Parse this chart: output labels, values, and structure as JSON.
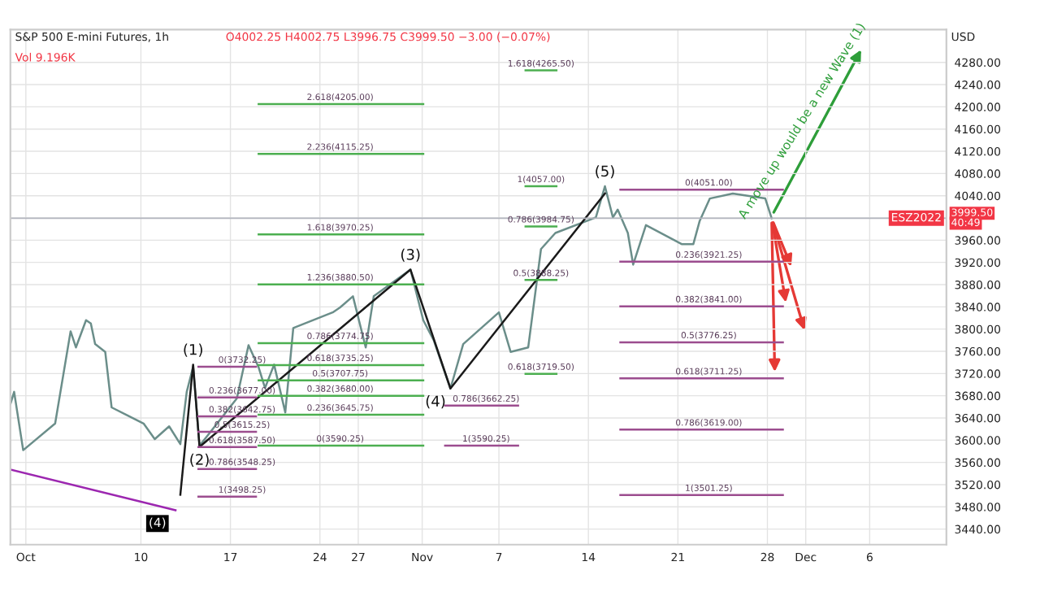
{
  "chart_data": {
    "type": "line",
    "title": "S&P 500 E-mini Futures, 1h",
    "subtitle": "O4002.25 H4002.75 L3996.75 C3999.50 −3.00 (−0.07%)",
    "ylabel": "USD",
    "xlim": [
      "2022-09-29T19:00",
      "2022-12-12"
    ],
    "ylim": [
      3412,
      4339
    ],
    "xticks": [
      {
        "value": "2022-10-01",
        "label": "Oct"
      },
      {
        "value": "2022-10-10",
        "label": "10"
      },
      {
        "value": "2022-10-17",
        "label": "17"
      },
      {
        "value": "2022-10-24",
        "label": "24"
      },
      {
        "value": "2022-10-27",
        "label": "27"
      },
      {
        "value": "2022-11-01",
        "label": "Nov"
      },
      {
        "value": "2022-11-07",
        "label": "7"
      },
      {
        "value": "2022-11-14",
        "label": "14"
      },
      {
        "value": "2022-11-21",
        "label": "21"
      },
      {
        "value": "2022-11-28",
        "label": "28"
      },
      {
        "value": "2022-12-01",
        "label": "Dec"
      },
      {
        "value": "2022-12-06",
        "label": "6"
      }
    ],
    "yticks": [
      {
        "value": 3440,
        "label": "3440.00"
      },
      {
        "value": 3480,
        "label": "3480.00"
      },
      {
        "value": 3520,
        "label": "3520.00"
      },
      {
        "value": 3560,
        "label": "3560.00"
      },
      {
        "value": 3600,
        "label": "3600.00"
      },
      {
        "value": 3640,
        "label": "3640.00"
      },
      {
        "value": 3680,
        "label": "3680.00"
      },
      {
        "value": 3720,
        "label": "3720.00"
      },
      {
        "value": 3760,
        "label": "3760.00"
      },
      {
        "value": 3800,
        "label": "3800.00"
      },
      {
        "value": 3840,
        "label": "3840.00"
      },
      {
        "value": 3880,
        "label": "3880.00"
      },
      {
        "value": 3920,
        "label": "3920.00"
      },
      {
        "value": 3960,
        "label": "3960.00"
      },
      {
        "value": 4000,
        "label": null
      },
      {
        "value": 4040,
        "label": "4040.00"
      },
      {
        "value": 4080,
        "label": "4080.00"
      },
      {
        "value": 4120,
        "label": "4120.00"
      },
      {
        "value": 4160,
        "label": "4160.00"
      },
      {
        "value": 4200,
        "label": "4200.00"
      },
      {
        "value": 4240,
        "label": "4240.00"
      },
      {
        "value": 4280,
        "label": "4280.00"
      }
    ],
    "grid": true,
    "series": [
      {
        "color": "#6b8e8a",
        "x": [
          "2022-09-29T19:00",
          "2022-09-30T02:00",
          "2022-09-30T19:00",
          "2022-10-03T07:00",
          "2022-10-04T12:00",
          "2022-10-04T22:00",
          "2022-10-05T17:00",
          "2022-10-06T02:00",
          "2022-10-06T10:00",
          "2022-10-07T05:00",
          "2022-10-07T17:00",
          "2022-10-10T05:00",
          "2022-10-11T02:00",
          "2022-10-12T05:00",
          "2022-10-13T02:00",
          "2022-10-13T14:00",
          "2022-10-14T02:00",
          "2022-10-14T14:00",
          "2022-10-17T12:00",
          "2022-10-18T10:00",
          "2022-10-19T05:00",
          "2022-10-19T17:00",
          "2022-10-20T10:00",
          "2022-10-21T07:00",
          "2022-10-21T22:00",
          "2022-10-25T00:00",
          "2022-10-25T14:00",
          "2022-10-26T14:00",
          "2022-10-27T14:00",
          "2022-10-28T05:00",
          "2022-10-31T02:00",
          "2022-11-01T02:00",
          "2022-11-01T22:00",
          "2022-11-03T05:00",
          "2022-11-04T05:00",
          "2022-11-07T00:00",
          "2022-11-07T22:00",
          "2022-11-09T07:00",
          "2022-11-10T07:00",
          "2022-11-11T10:00",
          "2022-11-14T14:00",
          "2022-11-15T07:00",
          "2022-11-15T22:00",
          "2022-11-16T07:00",
          "2022-11-17T02:00",
          "2022-11-17T12:00",
          "2022-11-18T12:00",
          "2022-11-21T07:00",
          "2022-11-22T05:00",
          "2022-11-22T17:00",
          "2022-11-23T12:00",
          "2022-11-25T07:00",
          "2022-11-27T20:00",
          "2022-11-28T08:00"
        ],
        "values": [
          3665,
          3687,
          3582,
          3630,
          3796,
          3767,
          3816,
          3810,
          3773,
          3759,
          3659,
          3630,
          3602,
          3625,
          3593,
          3687,
          3732,
          3590,
          3675,
          3771,
          3731,
          3694,
          3736,
          3650,
          3802,
          3830,
          3839,
          3859,
          3767,
          3859,
          3907,
          3816,
          3779,
          3693,
          3773,
          3830,
          3759,
          3767,
          3944,
          3973,
          4001,
          4057,
          4001,
          4015,
          3973,
          3916,
          3987,
          3953,
          3953,
          3995,
          4035,
          4044,
          4035,
          3999.5
        ]
      },
      {
        "color": "#1a1a1a",
        "x": [
          "2022-10-13T02:00",
          "2022-10-14T02:00",
          "2022-10-14T14:00",
          "2022-10-31T02:00",
          "2022-11-03T05:00",
          "2022-11-15T07:00"
        ],
        "values": [
          3502,
          3736,
          3588,
          3907,
          3693,
          4044
        ]
      },
      {
        "color": "#9c27b0",
        "x": [
          "2022-09-29T19:00",
          "2022-10-12T17:00"
        ],
        "values": [
          3547,
          3474
        ]
      },
      {
        "color": "#4caf50",
        "x": [
          "2022-10-19T05:00",
          "2022-11-01T02:00"
        ],
        "values": [
          4205,
          4205
        ]
      },
      {
        "color": "#4caf50",
        "x": [
          "2022-10-19T05:00",
          "2022-11-01T02:00"
        ],
        "values": [
          4115.25,
          4115.25
        ]
      },
      {
        "color": "#4caf50",
        "x": [
          "2022-10-19T05:00",
          "2022-11-01T02:00"
        ],
        "values": [
          3970.25,
          3970.25
        ]
      },
      {
        "color": "#4caf50",
        "x": [
          "2022-10-19T05:00",
          "2022-11-01T02:00"
        ],
        "values": [
          3880.5,
          3880.5
        ]
      },
      {
        "color": "#4caf50",
        "x": [
          "2022-10-19T05:00",
          "2022-11-01T02:00"
        ],
        "values": [
          3774.75,
          3774.75
        ]
      },
      {
        "color": "#4caf50",
        "x": [
          "2022-10-19T05:00",
          "2022-11-01T02:00"
        ],
        "values": [
          3735.25,
          3735.25
        ]
      },
      {
        "color": "#4caf50",
        "x": [
          "2022-10-19T05:00",
          "2022-11-01T02:00"
        ],
        "values": [
          3707.75,
          3707.75
        ]
      },
      {
        "color": "#4caf50",
        "x": [
          "2022-10-19T05:00",
          "2022-11-01T02:00"
        ],
        "values": [
          3680,
          3680
        ]
      },
      {
        "color": "#4caf50",
        "x": [
          "2022-10-19T05:00",
          "2022-11-01T02:00"
        ],
        "values": [
          3645.75,
          3645.75
        ]
      },
      {
        "color": "#4caf50",
        "x": [
          "2022-10-19T05:00",
          "2022-11-01T02:00"
        ],
        "values": [
          3590.25,
          3590.25
        ]
      },
      {
        "color": "#4caf50",
        "x": [
          "2022-11-09T02:00",
          "2022-11-11T12:00"
        ],
        "values": [
          4265.5,
          4265.5
        ]
      },
      {
        "color": "#4caf50",
        "x": [
          "2022-11-09T02:00",
          "2022-11-11T12:00"
        ],
        "values": [
          4057,
          4057
        ]
      },
      {
        "color": "#4caf50",
        "x": [
          "2022-11-09T02:00",
          "2022-11-11T12:00"
        ],
        "values": [
          3984.75,
          3984.75
        ]
      },
      {
        "color": "#4caf50",
        "x": [
          "2022-11-09T02:00",
          "2022-11-11T12:00"
        ],
        "values": [
          3888.25,
          3888.25
        ]
      },
      {
        "color": "#4caf50",
        "x": [
          "2022-11-09T02:00",
          "2022-11-11T12:00"
        ],
        "values": [
          3719.5,
          3719.5
        ]
      },
      {
        "color": "#9c4d8f",
        "x": [
          "2022-11-16T12:00",
          "2022-11-29T05:00"
        ],
        "values": [
          4051,
          4051
        ]
      },
      {
        "color": "#9c4d8f",
        "x": [
          "2022-11-16T12:00",
          "2022-11-29T05:00"
        ],
        "values": [
          3921.25,
          3921.25
        ]
      },
      {
        "color": "#9c4d8f",
        "x": [
          "2022-11-16T12:00",
          "2022-11-29T05:00"
        ],
        "values": [
          3841,
          3841
        ]
      },
      {
        "color": "#9c4d8f",
        "x": [
          "2022-11-16T12:00",
          "2022-11-29T05:00"
        ],
        "values": [
          3776.25,
          3776.25
        ]
      },
      {
        "color": "#9c4d8f",
        "x": [
          "2022-11-16T12:00",
          "2022-11-29T05:00"
        ],
        "values": [
          3711.25,
          3711.25
        ]
      },
      {
        "color": "#9c4d8f",
        "x": [
          "2022-11-16T12:00",
          "2022-11-29T05:00"
        ],
        "values": [
          3619,
          3619
        ]
      },
      {
        "color": "#9c4d8f",
        "x": [
          "2022-11-16T12:00",
          "2022-11-29T05:00"
        ],
        "values": [
          3501.25,
          3501.25
        ]
      },
      {
        "color": "#9c4d8f",
        "x": [
          "2022-10-14T12:00",
          "2022-10-19T00:00"
        ],
        "values": [
          3732.25,
          3732.25
        ]
      },
      {
        "color": "#9c4d8f",
        "x": [
          "2022-10-14T12:00",
          "2022-10-19T00:00"
        ],
        "values": [
          3677,
          3677
        ]
      },
      {
        "color": "#9c4d8f",
        "x": [
          "2022-10-14T12:00",
          "2022-10-19T00:00"
        ],
        "values": [
          3642.75,
          3642.75
        ]
      },
      {
        "color": "#9c4d8f",
        "x": [
          "2022-10-14T12:00",
          "2022-10-19T00:00"
        ],
        "values": [
          3615.25,
          3615.25
        ]
      },
      {
        "color": "#9c4d8f",
        "x": [
          "2022-10-14T12:00",
          "2022-10-19T00:00"
        ],
        "values": [
          3587.5,
          3587.5
        ]
      },
      {
        "color": "#9c4d8f",
        "x": [
          "2022-10-14T12:00",
          "2022-10-19T00:00"
        ],
        "values": [
          3548.25,
          3548.25
        ]
      },
      {
        "color": "#9c4d8f",
        "x": [
          "2022-10-14T12:00",
          "2022-10-19T00:00"
        ],
        "values": [
          3498.25,
          3498.25
        ]
      },
      {
        "color": "#9c4d8f",
        "x": [
          "2022-11-02T19:00",
          "2022-11-08T12:00"
        ],
        "values": [
          3662.25,
          3662.25
        ]
      },
      {
        "color": "#9c4d8f",
        "x": [
          "2022-11-02T19:00",
          "2022-11-08T12:00"
        ],
        "values": [
          3590.25,
          3590.25
        ]
      }
    ],
    "ref_lines": [
      {
        "axis": "y",
        "value": 3999.5,
        "label": "ESZ2022",
        "color": "#b2b5be"
      }
    ],
    "annotations": [
      "Vol 9.196K",
      {
        "text": "2.618(4205.00)",
        "x": "2022-10-25T14:00",
        "y": 4205
      },
      {
        "text": "2.236(4115.25)",
        "x": "2022-10-25T14:00",
        "y": 4115.25
      },
      {
        "text": "1.618(3970.25)",
        "x": "2022-10-25T14:00",
        "y": 3970.25
      },
      {
        "text": "1.236(3880.50)",
        "x": "2022-10-25T14:00",
        "y": 3880.5
      },
      {
        "text": "0.786(3774.75)",
        "x": "2022-10-25T14:00",
        "y": 3774.75
      },
      {
        "text": "0.618(3735.25)",
        "x": "2022-10-25T14:00",
        "y": 3735.25
      },
      {
        "text": "0.5(3707.75)",
        "x": "2022-10-25T14:00",
        "y": 3707.75
      },
      {
        "text": "0.382(3680.00)",
        "x": "2022-10-25T14:00",
        "y": 3680
      },
      {
        "text": "0.236(3645.75)",
        "x": "2022-10-25T14:00",
        "y": 3645.75
      },
      {
        "text": "0(3590.25)",
        "x": "2022-10-25T14:00",
        "y": 3590.25
      },
      {
        "text": "1.618(4265.50)",
        "x": "2022-11-10T07:00",
        "y": 4265.5
      },
      {
        "text": "1(4057.00)",
        "x": "2022-11-10T07:00",
        "y": 4057
      },
      {
        "text": "0.786(3984.75)",
        "x": "2022-11-10T07:00",
        "y": 3984.75
      },
      {
        "text": "0.5(3888.25)",
        "x": "2022-11-10T07:00",
        "y": 3888.25
      },
      {
        "text": "0.618(3719.50)",
        "x": "2022-11-10T07:00",
        "y": 3719.5
      },
      {
        "text": "0(4051.00)",
        "x": "2022-11-23T10:00",
        "y": 4051
      },
      {
        "text": "0.236(3921.25)",
        "x": "2022-11-23T10:00",
        "y": 3921.25
      },
      {
        "text": "0.382(3841.00)",
        "x": "2022-11-23T10:00",
        "y": 3841
      },
      {
        "text": "0.5(3776.25)",
        "x": "2022-11-23T10:00",
        "y": 3776.25
      },
      {
        "text": "0.618(3711.25)",
        "x": "2022-11-23T10:00",
        "y": 3711.25
      },
      {
        "text": "0.786(3619.00)",
        "x": "2022-11-23T10:00",
        "y": 3619
      },
      {
        "text": "1(3501.25)",
        "x": "2022-11-23T10:00",
        "y": 3501.25
      },
      {
        "text": "0(3732.25)",
        "x": "2022-10-17T22:00",
        "y": 3732.25
      },
      {
        "text": "0.236(3677.00)",
        "x": "2022-10-17T22:00",
        "y": 3677
      },
      {
        "text": "0.382(3642.75)",
        "x": "2022-10-17T22:00",
        "y": 3642.75
      },
      {
        "text": "0.5(3615.25)",
        "x": "2022-10-17T22:00",
        "y": 3615.25
      },
      {
        "text": "0.618(3587.50)",
        "x": "2022-10-17T22:00",
        "y": 3587.5
      },
      {
        "text": "0.786(3548.25)",
        "x": "2022-10-17T22:00",
        "y": 3548.25
      },
      {
        "text": "1(3498.25)",
        "x": "2022-10-17T22:00",
        "y": 3498.25
      },
      {
        "text": "0.786(3662.25)",
        "x": "2022-11-06T00:00",
        "y": 3662.25
      },
      {
        "text": "1(3590.25)",
        "x": "2022-11-06T00:00",
        "y": 3590.25
      },
      {
        "text": "(1)",
        "x": "2022-10-14T02:00",
        "y": 3736
      },
      {
        "text": "(2)",
        "x": "2022-10-14T14:00",
        "y": 3588
      },
      {
        "text": "(3)",
        "x": "2022-10-31T02:00",
        "y": 3907
      },
      {
        "text": "(4)",
        "x": "2022-11-03T05:00",
        "y": 3693
      },
      {
        "text": "(5)",
        "x": "2022-11-15T07:00",
        "y": 4057
      },
      {
        "text": "(4)",
        "x": "2022-10-11T07:00",
        "y": 3450
      },
      "A move up would be a new Wave (1)",
      "3999.50",
      "40:49"
    ]
  }
}
